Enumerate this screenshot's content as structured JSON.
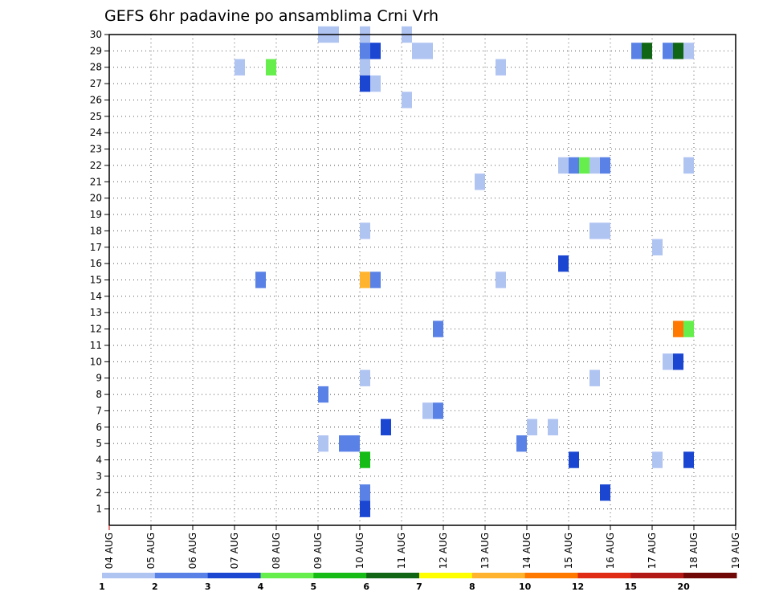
{
  "chart_data": {
    "type": "heatmap",
    "title": "GEFS 6hr padavine po ansamblima Crni Vrh",
    "xlabel": "",
    "ylabel": "",
    "x_tick_labels": [
      "04 AUG",
      "05 AUG",
      "06 AUG",
      "07 AUG",
      "08 AUG",
      "09 AUG",
      "10 AUG",
      "11 AUG",
      "12 AUG",
      "13 AUG",
      "14 AUG",
      "15 AUG",
      "16 AUG",
      "17 AUG",
      "18 AUG",
      "19 AUG"
    ],
    "x_range_days": [
      0,
      15
    ],
    "y_tick_labels": [
      "1",
      "2",
      "3",
      "4",
      "5",
      "6",
      "7",
      "8",
      "9",
      "10",
      "11",
      "12",
      "13",
      "14",
      "15",
      "16",
      "17",
      "18",
      "19",
      "20",
      "21",
      "22",
      "23",
      "24",
      "25",
      "26",
      "27",
      "28",
      "29",
      "30"
    ],
    "y_range": [
      0,
      30
    ],
    "grid": true,
    "cell_width_days": 0.25,
    "colorbar": {
      "labels": [
        "1",
        "2",
        "3",
        "4",
        "5",
        "6",
        "7",
        "8",
        "10",
        "12",
        "15",
        "20"
      ],
      "colors": [
        "#b0c4f2",
        "#5a82e6",
        "#1a46d2",
        "#66ee4c",
        "#16bb16",
        "#106614",
        "#ffff00",
        "#ffb32e",
        "#ff7800",
        "#e02c14",
        "#b21816",
        "#700808"
      ]
    },
    "cells": [
      {
        "member": 30,
        "day": 5.0,
        "mm": 1.5
      },
      {
        "member": 30,
        "day": 5.25,
        "mm": 1.5
      },
      {
        "member": 30,
        "day": 6.0,
        "mm": 1.5
      },
      {
        "member": 30,
        "day": 7.0,
        "mm": 1.5
      },
      {
        "member": 29,
        "day": 6.0,
        "mm": 2.5
      },
      {
        "member": 29,
        "day": 6.25,
        "mm": 3.5
      },
      {
        "member": 29,
        "day": 7.25,
        "mm": 1.5
      },
      {
        "member": 29,
        "day": 7.5,
        "mm": 1.5
      },
      {
        "member": 29,
        "day": 12.5,
        "mm": 2.5
      },
      {
        "member": 29,
        "day": 12.75,
        "mm": 6.5
      },
      {
        "member": 29,
        "day": 13.25,
        "mm": 2.5
      },
      {
        "member": 29,
        "day": 13.5,
        "mm": 6.5
      },
      {
        "member": 29,
        "day": 13.75,
        "mm": 1.5
      },
      {
        "member": 28,
        "day": 3.0,
        "mm": 1.5
      },
      {
        "member": 28,
        "day": 3.75,
        "mm": 4.5
      },
      {
        "member": 28,
        "day": 6.0,
        "mm": 1.5
      },
      {
        "member": 28,
        "day": 9.25,
        "mm": 1.5
      },
      {
        "member": 27,
        "day": 6.0,
        "mm": 3.5
      },
      {
        "member": 27,
        "day": 6.25,
        "mm": 1.5
      },
      {
        "member": 26,
        "day": 7.0,
        "mm": 1.5
      },
      {
        "member": 22,
        "day": 10.75,
        "mm": 1.5
      },
      {
        "member": 22,
        "day": 11.0,
        "mm": 2.5
      },
      {
        "member": 22,
        "day": 11.25,
        "mm": 4.5
      },
      {
        "member": 22,
        "day": 11.5,
        "mm": 1.5
      },
      {
        "member": 22,
        "day": 11.75,
        "mm": 2.5
      },
      {
        "member": 22,
        "day": 13.75,
        "mm": 1.5
      },
      {
        "member": 21,
        "day": 8.75,
        "mm": 1.5
      },
      {
        "member": 18,
        "day": 6.0,
        "mm": 1.5
      },
      {
        "member": 18,
        "day": 11.5,
        "mm": 1.5
      },
      {
        "member": 18,
        "day": 11.75,
        "mm": 1.5
      },
      {
        "member": 17,
        "day": 13.0,
        "mm": 1.5
      },
      {
        "member": 16,
        "day": 10.75,
        "mm": 3.5
      },
      {
        "member": 15,
        "day": 3.5,
        "mm": 2.5
      },
      {
        "member": 15,
        "day": 6.0,
        "mm": 9.0
      },
      {
        "member": 15,
        "day": 6.25,
        "mm": 2.5
      },
      {
        "member": 15,
        "day": 9.25,
        "mm": 1.5
      },
      {
        "member": 12,
        "day": 7.75,
        "mm": 2.5
      },
      {
        "member": 12,
        "day": 13.5,
        "mm": 11.0
      },
      {
        "member": 12,
        "day": 13.75,
        "mm": 4.5
      },
      {
        "member": 10,
        "day": 13.25,
        "mm": 1.5
      },
      {
        "member": 10,
        "day": 13.5,
        "mm": 3.5
      },
      {
        "member": 9,
        "day": 6.0,
        "mm": 1.5
      },
      {
        "member": 9,
        "day": 11.5,
        "mm": 1.5
      },
      {
        "member": 8,
        "day": 5.0,
        "mm": 2.5
      },
      {
        "member": 7,
        "day": 7.5,
        "mm": 1.5
      },
      {
        "member": 7,
        "day": 7.75,
        "mm": 2.5
      },
      {
        "member": 6,
        "day": 6.5,
        "mm": 3.5
      },
      {
        "member": 6,
        "day": 10.0,
        "mm": 1.5
      },
      {
        "member": 6,
        "day": 10.5,
        "mm": 1.5
      },
      {
        "member": 5,
        "day": 5.0,
        "mm": 1.5
      },
      {
        "member": 5,
        "day": 5.5,
        "mm": 2.5
      },
      {
        "member": 5,
        "day": 5.75,
        "mm": 2.5
      },
      {
        "member": 5,
        "day": 9.75,
        "mm": 2.5
      },
      {
        "member": 4,
        "day": 6.0,
        "mm": 5.5
      },
      {
        "member": 4,
        "day": 11.0,
        "mm": 3.5
      },
      {
        "member": 4,
        "day": 13.0,
        "mm": 1.5
      },
      {
        "member": 4,
        "day": 13.75,
        "mm": 3.5
      },
      {
        "member": 2,
        "day": 6.0,
        "mm": 2.5
      },
      {
        "member": 2,
        "day": 11.75,
        "mm": 3.5
      },
      {
        "member": 1,
        "day": 6.0,
        "mm": 3.5
      }
    ]
  }
}
